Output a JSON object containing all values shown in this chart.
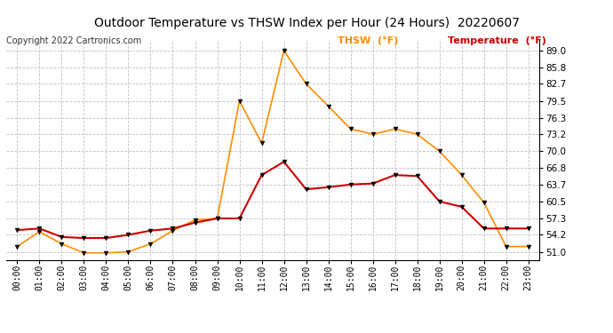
{
  "title": "Outdoor Temperature vs THSW Index per Hour (24 Hours)  20220607",
  "copyright": "Copyright 2022 Cartronics.com",
  "legend_thsw": "THSW  (°F)",
  "legend_temp": "Temperature  (°F)",
  "hours": [
    "00:00",
    "01:00",
    "02:00",
    "03:00",
    "04:00",
    "05:00",
    "06:00",
    "07:00",
    "08:00",
    "09:00",
    "10:00",
    "11:00",
    "12:00",
    "13:00",
    "14:00",
    "15:00",
    "16:00",
    "17:00",
    "18:00",
    "19:00",
    "20:00",
    "21:00",
    "22:00",
    "23:00"
  ],
  "temperature": [
    55.1,
    55.4,
    53.8,
    53.6,
    53.6,
    54.2,
    55.0,
    55.4,
    56.5,
    57.3,
    57.3,
    65.5,
    68.0,
    62.8,
    63.2,
    63.7,
    63.9,
    65.5,
    65.3,
    60.5,
    59.5,
    55.4,
    55.4,
    55.4
  ],
  "thsw": [
    52.0,
    54.8,
    52.5,
    50.8,
    50.8,
    51.0,
    52.5,
    55.0,
    57.0,
    57.3,
    79.5,
    71.5,
    89.0,
    82.7,
    78.5,
    74.2,
    73.2,
    74.2,
    73.2,
    70.0,
    65.5,
    60.3,
    52.0,
    52.0
  ],
  "thsw_color": "#FF8C00",
  "temp_color": "#CC0000",
  "yticks": [
    51.0,
    54.2,
    57.3,
    60.5,
    63.7,
    66.8,
    70.0,
    73.2,
    76.3,
    79.5,
    82.7,
    85.8,
    89.0
  ],
  "ymin": 49.5,
  "ymax": 91.0,
  "title_color": "#000000",
  "background_color": "#ffffff",
  "grid_color": "#c0c0c0"
}
